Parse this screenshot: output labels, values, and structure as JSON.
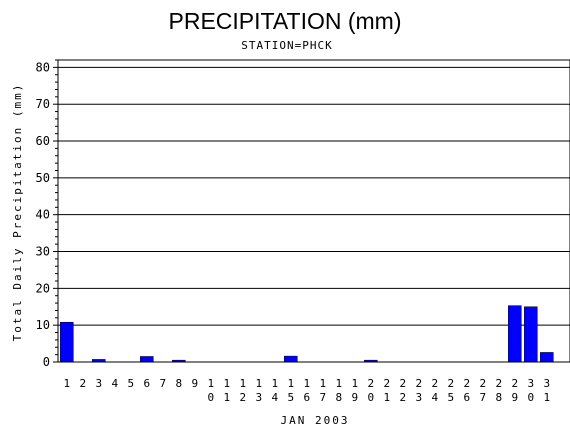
{
  "chart_data": {
    "type": "bar",
    "title": "PRECIPITATION (mm)",
    "subtitle": "STATION=PHCK",
    "xlabel": "JAN 2003",
    "ylabel": "Total Daily Precipitation (mm)",
    "ylim": [
      0,
      82
    ],
    "yticks": [
      0,
      10,
      20,
      30,
      40,
      50,
      60,
      70,
      80
    ],
    "ytick_labels": [
      "0",
      "10",
      "20",
      "30",
      "40",
      "50",
      "60",
      "70",
      "80"
    ],
    "grid": true,
    "bar_color": "#0000ff",
    "categories": [
      "1",
      "2",
      "3",
      "4",
      "5",
      "6",
      "7",
      "8",
      "9",
      "10",
      "11",
      "12",
      "13",
      "14",
      "15",
      "16",
      "17",
      "18",
      "19",
      "20",
      "21",
      "22",
      "23",
      "24",
      "25",
      "26",
      "27",
      "28",
      "29",
      "30",
      "31"
    ],
    "values": [
      10.8,
      0,
      0.7,
      0,
      0,
      1.5,
      0,
      0.5,
      0,
      0,
      0,
      0,
      0,
      0,
      1.6,
      0,
      0,
      0,
      0,
      0.5,
      0,
      0,
      0,
      0,
      0,
      0,
      0,
      0,
      15.3,
      15.0,
      2.6
    ]
  }
}
